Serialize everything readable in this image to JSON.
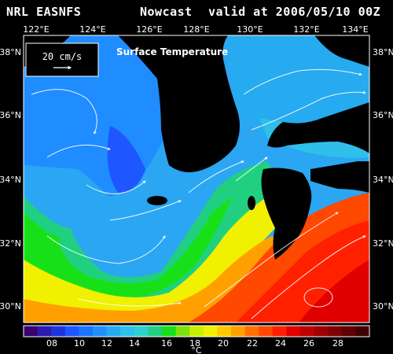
{
  "header": {
    "source": "NRL EASNFS",
    "product": "Nowcast",
    "valid": "valid at 2006/05/10 00Z"
  },
  "map": {
    "field_label": "Surface Temperature",
    "lon_labels": [
      "122°E",
      "124°E",
      "126°E",
      "128°E",
      "130°E",
      "132°E",
      "134°E"
    ],
    "lat_labels": [
      "38°N",
      "36°N",
      "34°N",
      "32°N",
      "30°N"
    ],
    "land_color": "#000000"
  },
  "legend": {
    "speed_label": "20 cm/s"
  },
  "colorbar": {
    "unit": "°C",
    "tick_labels": [
      "08",
      "10",
      "12",
      "14",
      "16",
      "18",
      "20",
      "22",
      "24",
      "26",
      "28"
    ],
    "colors": [
      "#3a0070",
      "#2a1cb0",
      "#1f32e0",
      "#1e56ff",
      "#1c74ff",
      "#2090ff",
      "#26aaf0",
      "#2ec0ea",
      "#2ed0d0",
      "#20d080",
      "#18e018",
      "#80e010",
      "#c8f000",
      "#f0f000",
      "#ffc800",
      "#ffa000",
      "#ff7000",
      "#ff4800",
      "#ff2000",
      "#e00000",
      "#c00000",
      "#a00000",
      "#800000",
      "#600000",
      "#400000"
    ]
  }
}
